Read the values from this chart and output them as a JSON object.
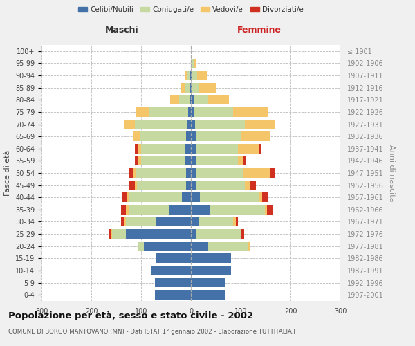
{
  "age_groups": [
    "0-4",
    "5-9",
    "10-14",
    "15-19",
    "20-24",
    "25-29",
    "30-34",
    "35-39",
    "40-44",
    "45-49",
    "50-54",
    "55-59",
    "60-64",
    "65-69",
    "70-74",
    "75-79",
    "80-84",
    "85-89",
    "90-94",
    "95-99",
    "100+"
  ],
  "birth_years": [
    "1997-2001",
    "1992-1996",
    "1987-1991",
    "1982-1986",
    "1977-1981",
    "1972-1976",
    "1967-1971",
    "1962-1966",
    "1957-1961",
    "1952-1956",
    "1947-1951",
    "1942-1946",
    "1937-1941",
    "1932-1936",
    "1927-1931",
    "1922-1926",
    "1917-1921",
    "1912-1916",
    "1907-1911",
    "1902-1906",
    "≤ 1901"
  ],
  "male_celibi": [
    72,
    72,
    80,
    70,
    95,
    130,
    70,
    45,
    18,
    10,
    10,
    12,
    12,
    10,
    8,
    5,
    3,
    3,
    2,
    0,
    0
  ],
  "male_coniugati": [
    0,
    0,
    0,
    0,
    10,
    28,
    60,
    80,
    105,
    98,
    100,
    88,
    88,
    92,
    105,
    80,
    20,
    8,
    5,
    0,
    0
  ],
  "male_vedovi": [
    0,
    0,
    0,
    0,
    0,
    2,
    5,
    5,
    5,
    5,
    5,
    5,
    5,
    15,
    20,
    25,
    18,
    8,
    5,
    0,
    0
  ],
  "male_divorziati": [
    0,
    0,
    0,
    0,
    0,
    5,
    5,
    10,
    10,
    12,
    10,
    8,
    8,
    0,
    0,
    0,
    0,
    0,
    0,
    0,
    0
  ],
  "female_nubili": [
    68,
    68,
    80,
    80,
    35,
    10,
    15,
    38,
    18,
    10,
    10,
    10,
    10,
    10,
    8,
    5,
    5,
    2,
    2,
    0,
    0
  ],
  "female_coniugate": [
    0,
    0,
    0,
    0,
    80,
    90,
    70,
    110,
    120,
    98,
    95,
    85,
    85,
    90,
    100,
    80,
    30,
    15,
    10,
    5,
    0
  ],
  "female_vedove": [
    0,
    0,
    0,
    0,
    5,
    2,
    5,
    5,
    5,
    10,
    55,
    10,
    42,
    58,
    62,
    70,
    42,
    35,
    20,
    5,
    0
  ],
  "female_divorziate": [
    0,
    0,
    0,
    0,
    0,
    5,
    5,
    12,
    12,
    12,
    10,
    5,
    5,
    0,
    0,
    0,
    0,
    0,
    0,
    0,
    0
  ],
  "colors": {
    "celibi": "#4472a8",
    "coniugati": "#c5d9a0",
    "vedovi": "#f5c56a",
    "divorziati": "#d03020"
  },
  "title": "Popolazione per età, sesso e stato civile - 2002",
  "subtitle": "COMUNE DI BORGO MANTOVANO (MN) - Dati ISTAT 1° gennaio 2002 - Elaborazione TUTTITALIA.IT",
  "xlim": 300,
  "background_color": "#f0f0f0",
  "plot_bg": "#ffffff"
}
